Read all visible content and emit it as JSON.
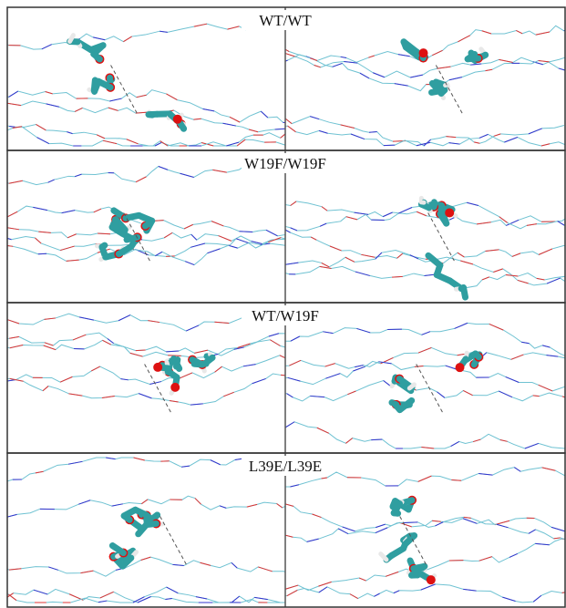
{
  "panels": [
    {
      "title": "WT/WT"
    },
    {
      "title": "W19F/W19F"
    },
    {
      "title": "WT/W19F"
    },
    {
      "title": "L39E/L39E"
    }
  ]
}
